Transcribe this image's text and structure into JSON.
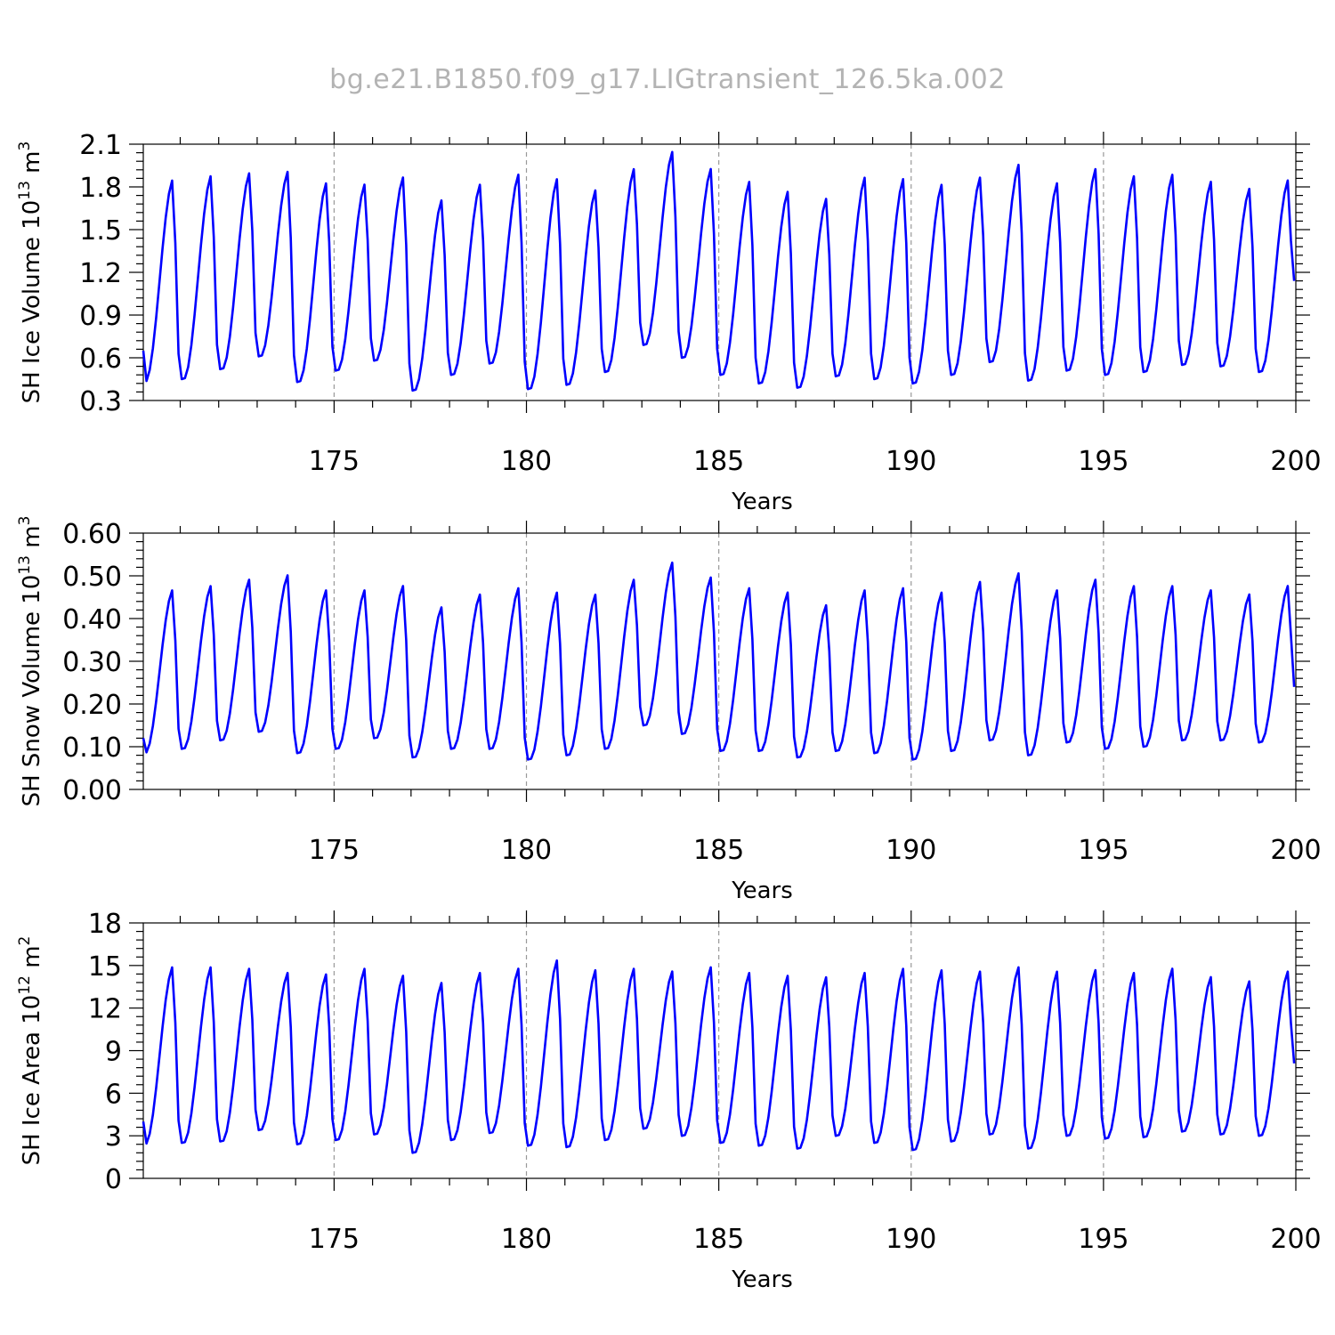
{
  "title": "bg.e21.B1850.f09_g17.LIGtransient_126.5ka.002",
  "chart_data": [
    {
      "type": "line",
      "ylabel_main": "SH Ice Volume 10",
      "ylabel_exp": "13",
      "ylabel_unit": " m",
      "ylabel_unit_exp": "3",
      "xlabel": "Years",
      "xlim": [
        170.04,
        200.0
      ],
      "ylim": [
        0.3,
        2.1
      ],
      "yticks": [
        0.3,
        0.6,
        0.9,
        1.2,
        1.5,
        1.8,
        2.1
      ],
      "yticklabels": [
        "0.3",
        "0.6",
        "0.9",
        "1.2",
        "1.5",
        "1.8",
        "2.1"
      ],
      "xticks": [
        175,
        180,
        185,
        190,
        195,
        200
      ],
      "xticklabels": [
        "175",
        "180",
        "185",
        "190",
        "195",
        "200"
      ],
      "color": "#0000ff",
      "first": 0.65,
      "peaks": [
        1.86,
        1.89,
        1.91,
        1.92,
        1.84,
        1.83,
        1.88,
        1.72,
        1.83,
        1.9,
        1.87,
        1.79,
        1.94,
        2.06,
        1.94,
        1.85,
        1.78,
        1.73,
        1.88,
        1.87,
        1.83,
        1.88,
        1.97,
        1.84,
        1.94,
        1.89,
        1.9,
        1.85,
        1.8,
        1.86
      ],
      "troughs": [
        0.43,
        0.45,
        0.52,
        0.61,
        0.43,
        0.51,
        0.58,
        0.37,
        0.48,
        0.56,
        0.38,
        0.41,
        0.5,
        0.69,
        0.6,
        0.48,
        0.42,
        0.39,
        0.47,
        0.45,
        0.42,
        0.48,
        0.57,
        0.44,
        0.51,
        0.48,
        0.5,
        0.55,
        0.54,
        0.5
      ],
      "last": 1.14
    },
    {
      "type": "line",
      "ylabel_main": "SH Snow Volume 10",
      "ylabel_exp": "13",
      "ylabel_unit": " m",
      "ylabel_unit_exp": "3",
      "xlabel": "Years",
      "xlim": [
        170.04,
        200.0
      ],
      "ylim": [
        0.0,
        0.6
      ],
      "yticks": [
        0.0,
        0.1,
        0.2,
        0.3,
        0.4,
        0.5,
        0.6
      ],
      "yticklabels": [
        "0.00",
        "0.10",
        "0.20",
        "0.30",
        "0.40",
        "0.50",
        "0.60"
      ],
      "xticks": [
        175,
        180,
        185,
        190,
        195,
        200
      ],
      "xticklabels": [
        "175",
        "180",
        "185",
        "190",
        "195",
        "200"
      ],
      "color": "#0000ff",
      "first": 0.12,
      "peaks": [
        0.47,
        0.48,
        0.495,
        0.505,
        0.47,
        0.47,
        0.48,
        0.43,
        0.46,
        0.475,
        0.465,
        0.46,
        0.495,
        0.535,
        0.5,
        0.475,
        0.465,
        0.435,
        0.47,
        0.475,
        0.465,
        0.49,
        0.51,
        0.47,
        0.495,
        0.48,
        0.48,
        0.47,
        0.46,
        0.48
      ],
      "troughs": [
        0.085,
        0.095,
        0.115,
        0.135,
        0.085,
        0.095,
        0.12,
        0.075,
        0.095,
        0.095,
        0.07,
        0.08,
        0.095,
        0.15,
        0.13,
        0.09,
        0.09,
        0.075,
        0.09,
        0.085,
        0.07,
        0.09,
        0.115,
        0.08,
        0.11,
        0.095,
        0.1,
        0.115,
        0.115,
        0.11
      ],
      "last": 0.24
    },
    {
      "type": "line",
      "ylabel_main": "SH Ice Area 10",
      "ylabel_exp": "12",
      "ylabel_unit": " m",
      "ylabel_unit_exp": "2",
      "xlabel": "Years",
      "xlim": [
        170.04,
        200.0
      ],
      "ylim": [
        0,
        18
      ],
      "yticks": [
        0,
        3,
        6,
        9,
        12,
        15,
        18
      ],
      "yticklabels": [
        "0",
        "3",
        "6",
        "9",
        "12",
        "15",
        "18"
      ],
      "xticks": [
        175,
        180,
        185,
        190,
        195,
        200
      ],
      "xticklabels": [
        "175",
        "180",
        "185",
        "190",
        "195",
        "200"
      ],
      "color": "#0000ff",
      "first": 4.0,
      "peaks": [
        15.0,
        15.0,
        14.9,
        14.6,
        14.5,
        14.9,
        14.4,
        13.9,
        14.6,
        14.9,
        15.5,
        14.8,
        14.9,
        14.7,
        15.0,
        14.6,
        14.4,
        14.3,
        14.6,
        14.9,
        14.8,
        14.7,
        15.0,
        14.7,
        14.8,
        14.6,
        14.9,
        14.3,
        14.0,
        14.7
      ],
      "troughs": [
        2.4,
        2.5,
        2.6,
        3.4,
        2.4,
        2.7,
        3.1,
        1.8,
        2.7,
        3.2,
        2.3,
        2.2,
        2.7,
        3.5,
        3.0,
        2.5,
        2.3,
        2.1,
        3.0,
        2.5,
        2.0,
        2.6,
        3.1,
        2.1,
        3.0,
        2.8,
        2.9,
        3.3,
        3.1,
        3.0
      ],
      "last": 8.1
    }
  ]
}
